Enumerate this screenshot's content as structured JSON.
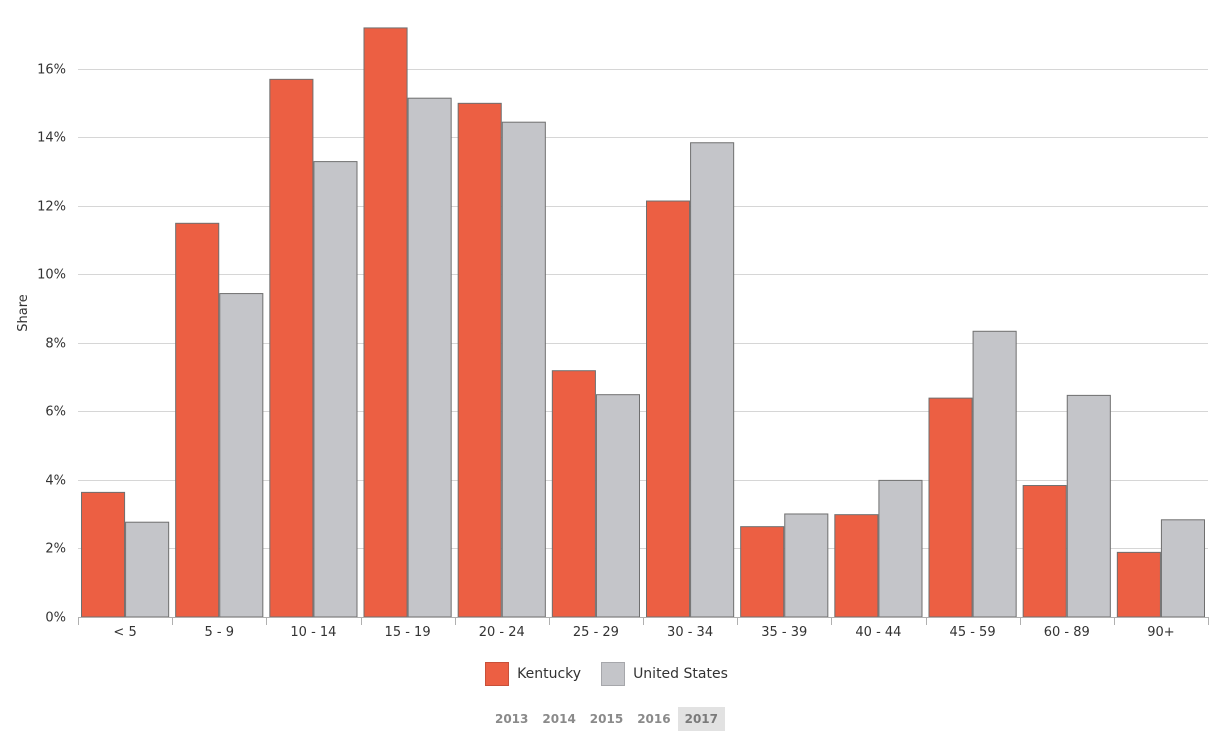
{
  "chart_data": {
    "type": "bar",
    "ylabel": "Share",
    "ylim": [
      0,
      18
    ],
    "yticks": [
      0,
      2,
      4,
      6,
      8,
      10,
      12,
      14,
      16
    ],
    "ytick_labels": [
      "0%",
      "2%",
      "4%",
      "6%",
      "8%",
      "10%",
      "12%",
      "14%",
      "16%"
    ],
    "grid": true,
    "legend_position": "bottom-center",
    "categories": [
      "< 5",
      "5 - 9",
      "10 - 14",
      "15 - 19",
      "20 - 24",
      "25 - 29",
      "30 - 34",
      "35 - 39",
      "40 - 44",
      "45 - 59",
      "60 - 89",
      "90+"
    ],
    "series": [
      {
        "name": "Kentucky",
        "color": "#ec5f43",
        "values": [
          3.65,
          11.5,
          15.7,
          17.2,
          15.0,
          7.2,
          12.15,
          2.65,
          3.0,
          6.4,
          3.85,
          1.9
        ]
      },
      {
        "name": "United States",
        "color": "#c4c5c9",
        "values": [
          2.78,
          9.45,
          13.3,
          15.15,
          14.45,
          6.5,
          13.85,
          3.02,
          4.0,
          8.35,
          6.48,
          2.85
        ]
      }
    ]
  },
  "year_selector": {
    "years": [
      "2013",
      "2014",
      "2015",
      "2016",
      "2017"
    ],
    "selected": "2017"
  }
}
